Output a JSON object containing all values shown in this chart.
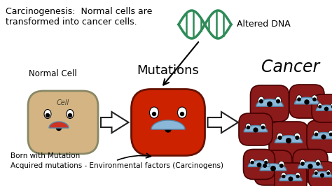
{
  "background_color": "#3a3a3a",
  "title_text": "Carcinogenesis:  Normal cells are\ntransformed into cancer cells.",
  "title_color": "#000000",
  "title_fontsize": 9.0,
  "normal_cell_label": "Normal Cell",
  "mutation_label": "Mutations",
  "cancer_label": "Cancer",
  "altered_dna_label": "Altered DNA",
  "bottom_text1": "Born with Mutation",
  "bottom_text2": "Acquired mutations - Environmental factors (Carcinogens)",
  "cell_label": "Cell",
  "normal_cell_color": "#D4B483",
  "normal_cell_edge": "#888866",
  "mutant_cell_color": "#CC2200",
  "mutant_cell_edge": "#661100",
  "cancer_cell_color": "#8B1A1A",
  "cancer_cell_edge": "#440000",
  "smile_color": "#8BB8D8",
  "eye_color": "#ffffff",
  "dna_color": "#2E8B57",
  "arrow_color": "#000000",
  "hollow_arrow_face": "#ffffff",
  "hollow_arrow_edge": "#222222"
}
